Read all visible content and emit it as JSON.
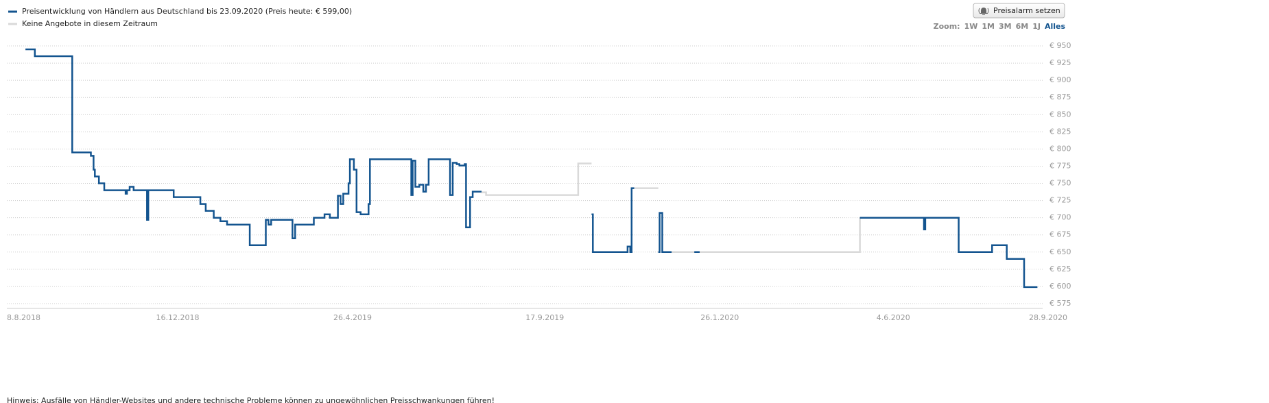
{
  "chart_data": {
    "type": "step-line",
    "xlim": [
      "2018-08-08",
      "2020-09-28"
    ],
    "xticks": [
      {
        "value": "2018-08-08",
        "label": "8.8.2018"
      },
      {
        "value": "2018-12-16",
        "label": "16.12.2018"
      },
      {
        "value": "2019-04-26",
        "label": "26.4.2019"
      },
      {
        "value": "2019-09-17",
        "label": "17.9.2019"
      },
      {
        "value": "2020-01-26",
        "label": "26.1.2020"
      },
      {
        "value": "2020-06-04",
        "label": "4.6.2020"
      },
      {
        "value": "2020-09-28",
        "label": "28.9.2020"
      }
    ],
    "ylim": [
      575,
      950
    ],
    "yticks": [
      {
        "value": 575,
        "label": "€ 575"
      },
      {
        "value": 600,
        "label": "€ 600"
      },
      {
        "value": 625,
        "label": "€ 625"
      },
      {
        "value": 650,
        "label": "€ 650"
      },
      {
        "value": 675,
        "label": "€ 675"
      },
      {
        "value": 700,
        "label": "€ 700"
      },
      {
        "value": 725,
        "label": "€ 725"
      },
      {
        "value": 750,
        "label": "€ 750"
      },
      {
        "value": 775,
        "label": "€ 775"
      },
      {
        "value": 800,
        "label": "€ 800"
      },
      {
        "value": 825,
        "label": "€ 825"
      },
      {
        "value": 850,
        "label": "€ 850"
      },
      {
        "value": 875,
        "label": "€ 875"
      },
      {
        "value": 900,
        "label": "€ 900"
      },
      {
        "value": 925,
        "label": "€ 925"
      },
      {
        "value": 950,
        "label": "€ 950"
      }
    ],
    "grid": true,
    "series": [
      {
        "name": "Preisentwicklung von Händlern aus Deutschland bis 23.09.2020 (Preis heute: € 599,00)",
        "color": "#13548f",
        "x": [
          "2018-08-24",
          "2018-08-31",
          "2018-09-28",
          "2018-10-12",
          "2018-10-14",
          "2018-10-15",
          "2018-10-18",
          "2018-10-22",
          "2018-11-07",
          "2018-11-08",
          "2018-11-10",
          "2018-11-13",
          "2018-11-23",
          "2018-11-24",
          "2018-12-13",
          "2019-01-02",
          "2019-01-06",
          "2019-01-12",
          "2019-01-17",
          "2019-01-22",
          "2019-02-08",
          "2019-02-20",
          "2019-02-22",
          "2019-02-24",
          "2019-03-12",
          "2019-03-14",
          "2019-03-28",
          "2019-04-05",
          "2019-04-09",
          "2019-04-15",
          "2019-04-17",
          "2019-04-19",
          "2019-04-23",
          "2019-04-24",
          "2019-04-27",
          "2019-04-29",
          "2019-05-02",
          "2019-05-08",
          "2019-05-09",
          "2019-06-09",
          "2019-06-10",
          "2019-06-12",
          "2019-06-15",
          "2019-06-18",
          "2019-06-20",
          "2019-06-22",
          "2019-07-08",
          "2019-07-10",
          "2019-07-13",
          "2019-07-15",
          "2019-07-19",
          "2019-07-20",
          "2019-07-23",
          "2019-07-25",
          "2019-07-31",
          null,
          "2019-10-22",
          "2019-10-23",
          "2019-11-18",
          "2019-11-20",
          "2019-11-21",
          "2019-11-23",
          null,
          "2019-12-11",
          "2019-12-12",
          "2019-12-14",
          "2019-12-21",
          null,
          "2020-01-07",
          "2020-01-11",
          null,
          "2020-05-10",
          "2020-06-27",
          "2020-06-28",
          "2020-07-23",
          "2020-08-17",
          "2020-08-28",
          "2020-09-10",
          "2020-09-20"
        ],
        "values": [
          945,
          935,
          795,
          790,
          770,
          760,
          750,
          740,
          735,
          740,
          745,
          740,
          697,
          740,
          730,
          720,
          710,
          700,
          695,
          690,
          660,
          697,
          690,
          697,
          670,
          690,
          700,
          705,
          700,
          732,
          720,
          735,
          750,
          785,
          770,
          708,
          705,
          720,
          785,
          733,
          783,
          745,
          748,
          738,
          748,
          785,
          733,
          780,
          778,
          776,
          778,
          686,
          730,
          738,
          737,
          null,
          705,
          650,
          658,
          650,
          743,
          743,
          null,
          650,
          707,
          650,
          650,
          null,
          650,
          650,
          null,
          700,
          683,
          700,
          650,
          660,
          640,
          599,
          599
        ]
      },
      {
        "name": "Keine Angebote in diesem Zeitraum",
        "color": "#d9d9d9",
        "x": [
          "2019-07-31",
          "2019-08-04",
          "2019-10-12",
          "2019-10-22",
          null,
          "2019-11-23",
          "2019-12-11",
          null,
          "2019-12-21",
          "2020-05-10"
        ],
        "values": [
          737,
          733,
          779,
          779,
          null,
          743,
          743,
          null,
          650,
          700
        ]
      }
    ]
  },
  "button": "Preisalarm setzen",
  "zoom": {
    "label": "Zoom:",
    "options": [
      "1W",
      "1M",
      "3M",
      "6M",
      "1J",
      "Alles"
    ],
    "selected": "Alles"
  },
  "footer": "Hinweis: Ausfälle von Händler-Websites und andere technische Probleme können zu ungewöhnlichen Preisschwankungen führen!"
}
